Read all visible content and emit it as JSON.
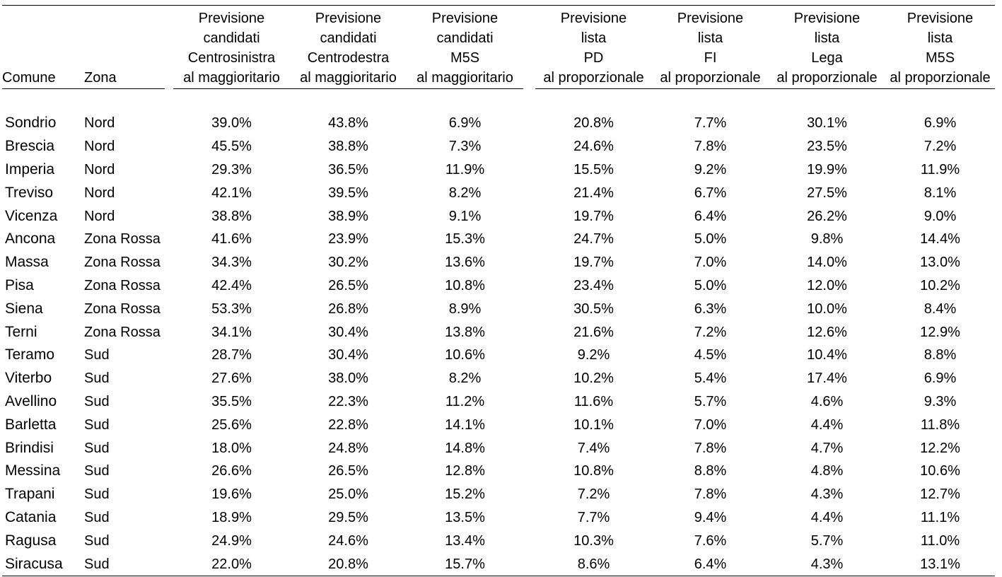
{
  "headers": {
    "comune": "Comune",
    "zona": "Zona",
    "cols": [
      {
        "l1": "Previsione",
        "l2": "candidati",
        "l3": "Centrosinistra",
        "l4": "al maggioritario"
      },
      {
        "l1": "Previsione",
        "l2": "candidati",
        "l3": "Centrodestra",
        "l4": "al maggioritario"
      },
      {
        "l1": "Previsione",
        "l2": "candidati",
        "l3": "M5S",
        "l4": "al maggioritario"
      },
      {
        "l1": "Previsione",
        "l2": "lista",
        "l3": "PD",
        "l4": "al proporzionale"
      },
      {
        "l1": "Previsione",
        "l2": "lista",
        "l3": "FI",
        "l4": "al proporzionale"
      },
      {
        "l1": "Previsione",
        "l2": "lista",
        "l3": "Lega",
        "l4": "al proporzionale"
      },
      {
        "l1": "Previsione",
        "l2": "lista",
        "l3": "M5S",
        "l4": "al proporzionale"
      }
    ]
  },
  "rows": [
    {
      "comune": "Sondrio",
      "zona": "Nord",
      "v": [
        "39.0%",
        "43.8%",
        "6.9%",
        "20.8%",
        "7.7%",
        "30.1%",
        "6.9%"
      ]
    },
    {
      "comune": "Brescia",
      "zona": "Nord",
      "v": [
        "45.5%",
        "38.8%",
        "7.3%",
        "24.6%",
        "7.8%",
        "23.5%",
        "7.2%"
      ]
    },
    {
      "comune": "Imperia",
      "zona": "Nord",
      "v": [
        "29.3%",
        "36.5%",
        "11.9%",
        "15.5%",
        "9.2%",
        "19.9%",
        "11.9%"
      ]
    },
    {
      "comune": "Treviso",
      "zona": "Nord",
      "v": [
        "42.1%",
        "39.5%",
        "8.2%",
        "21.4%",
        "6.7%",
        "27.5%",
        "8.1%"
      ]
    },
    {
      "comune": "Vicenza",
      "zona": "Nord",
      "v": [
        "38.8%",
        "38.9%",
        "9.1%",
        "19.7%",
        "6.4%",
        "26.2%",
        "9.0%"
      ]
    },
    {
      "comune": "Ancona",
      "zona": "Zona Rossa",
      "v": [
        "41.6%",
        "23.9%",
        "15.3%",
        "24.7%",
        "5.0%",
        "9.8%",
        "14.4%"
      ]
    },
    {
      "comune": "Massa",
      "zona": "Zona Rossa",
      "v": [
        "34.3%",
        "30.2%",
        "13.6%",
        "19.7%",
        "7.0%",
        "14.0%",
        "13.0%"
      ]
    },
    {
      "comune": "Pisa",
      "zona": "Zona Rossa",
      "v": [
        "42.4%",
        "26.5%",
        "10.8%",
        "23.4%",
        "5.0%",
        "12.0%",
        "10.2%"
      ]
    },
    {
      "comune": "Siena",
      "zona": "Zona Rossa",
      "v": [
        "53.3%",
        "26.8%",
        "8.9%",
        "30.5%",
        "6.3%",
        "10.0%",
        "8.4%"
      ]
    },
    {
      "comune": "Terni",
      "zona": "Zona Rossa",
      "v": [
        "34.1%",
        "30.4%",
        "13.8%",
        "21.6%",
        "7.2%",
        "12.6%",
        "12.9%"
      ]
    },
    {
      "comune": "Teramo",
      "zona": "Sud",
      "v": [
        "28.7%",
        "30.4%",
        "10.6%",
        "9.2%",
        "4.5%",
        "10.4%",
        "8.8%"
      ]
    },
    {
      "comune": "Viterbo",
      "zona": "Sud",
      "v": [
        "27.6%",
        "38.0%",
        "8.2%",
        "10.2%",
        "5.4%",
        "17.4%",
        "6.9%"
      ]
    },
    {
      "comune": "Avellino",
      "zona": "Sud",
      "v": [
        "35.5%",
        "22.3%",
        "11.2%",
        "11.6%",
        "5.7%",
        "4.6%",
        "9.3%"
      ]
    },
    {
      "comune": "Barletta",
      "zona": "Sud",
      "v": [
        "25.6%",
        "22.8%",
        "14.1%",
        "10.1%",
        "7.0%",
        "4.4%",
        "11.8%"
      ]
    },
    {
      "comune": "Brindisi",
      "zona": "Sud",
      "v": [
        "18.0%",
        "24.8%",
        "14.8%",
        "7.4%",
        "7.8%",
        "4.7%",
        "12.2%"
      ]
    },
    {
      "comune": "Messina",
      "zona": "Sud",
      "v": [
        "26.6%",
        "26.5%",
        "12.8%",
        "10.8%",
        "8.8%",
        "4.8%",
        "10.6%"
      ]
    },
    {
      "comune": "Trapani",
      "zona": "Sud",
      "v": [
        "19.6%",
        "25.0%",
        "15.2%",
        "7.2%",
        "7.8%",
        "4.3%",
        "12.7%"
      ]
    },
    {
      "comune": "Catania",
      "zona": "Sud",
      "v": [
        "18.9%",
        "29.5%",
        "13.5%",
        "7.7%",
        "9.4%",
        "4.4%",
        "11.1%"
      ]
    },
    {
      "comune": "Ragusa",
      "zona": "Sud",
      "v": [
        "24.9%",
        "24.6%",
        "13.4%",
        "10.3%",
        "7.6%",
        "5.7%",
        "11.0%"
      ]
    },
    {
      "comune": "Siracusa",
      "zona": "Sud",
      "v": [
        "22.0%",
        "20.8%",
        "15.7%",
        "8.6%",
        "6.4%",
        "4.3%",
        "13.1%"
      ]
    }
  ]
}
